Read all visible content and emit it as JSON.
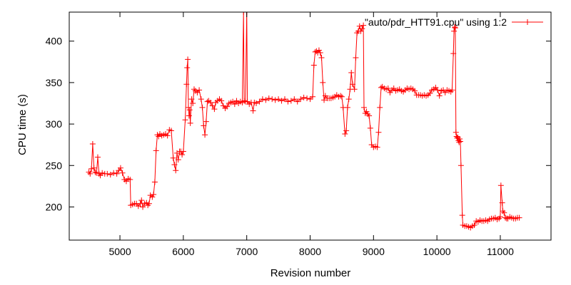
{
  "chart_data": {
    "type": "line",
    "title": "",
    "xlabel": "Revision number",
    "ylabel": "CPU time (s)",
    "xlim": [
      4200,
      11800
    ],
    "ylim": [
      160,
      435
    ],
    "xticks": [
      5000,
      6000,
      7000,
      8000,
      9000,
      10000,
      11000
    ],
    "yticks": [
      200,
      250,
      300,
      350,
      400
    ],
    "grid": false,
    "legend_position": "top-right",
    "marker": "plus",
    "series": [
      {
        "name": "\"auto/pdr_HTT91.cpu\" using 1:2",
        "color": "#ff0000",
        "points": [
          [
            4510,
            242
          ],
          [
            4530,
            240
          ],
          [
            4550,
            246
          ],
          [
            4570,
            276
          ],
          [
            4590,
            247
          ],
          [
            4610,
            242
          ],
          [
            4630,
            241
          ],
          [
            4650,
            260
          ],
          [
            4670,
            240
          ],
          [
            4690,
            238
          ],
          [
            4720,
            241
          ],
          [
            4760,
            240
          ],
          [
            4800,
            240
          ],
          [
            4850,
            239
          ],
          [
            4900,
            241
          ],
          [
            4950,
            240
          ],
          [
            4980,
            244
          ],
          [
            5010,
            247
          ],
          [
            5040,
            241
          ],
          [
            5070,
            233
          ],
          [
            5100,
            231
          ],
          [
            5130,
            234
          ],
          [
            5160,
            233
          ],
          [
            5170,
            202
          ],
          [
            5200,
            203
          ],
          [
            5230,
            204
          ],
          [
            5260,
            204
          ],
          [
            5290,
            201
          ],
          [
            5320,
            204
          ],
          [
            5340,
            208
          ],
          [
            5360,
            200
          ],
          [
            5390,
            204
          ],
          [
            5420,
            205
          ],
          [
            5440,
            202
          ],
          [
            5460,
            204
          ],
          [
            5480,
            214
          ],
          [
            5510,
            212
          ],
          [
            5530,
            215
          ],
          [
            5550,
            230
          ],
          [
            5570,
            268
          ],
          [
            5590,
            287
          ],
          [
            5610,
            285
          ],
          [
            5630,
            288
          ],
          [
            5660,
            286
          ],
          [
            5690,
            287
          ],
          [
            5720,
            288
          ],
          [
            5750,
            286
          ],
          [
            5780,
            293
          ],
          [
            5810,
            292
          ],
          [
            5840,
            259
          ],
          [
            5860,
            251
          ],
          [
            5880,
            244
          ],
          [
            5900,
            265
          ],
          [
            5920,
            257
          ],
          [
            5940,
            267
          ],
          [
            5960,
            267
          ],
          [
            5980,
            263
          ],
          [
            6000,
            267
          ],
          [
            6030,
            305
          ],
          [
            6050,
            348
          ],
          [
            6060,
            368
          ],
          [
            6070,
            378
          ],
          [
            6080,
            320
          ],
          [
            6090,
            310
          ],
          [
            6100,
            317
          ],
          [
            6110,
            301
          ],
          [
            6130,
            330
          ],
          [
            6150,
            325
          ],
          [
            6170,
            342
          ],
          [
            6190,
            340
          ],
          [
            6220,
            338
          ],
          [
            6250,
            341
          ],
          [
            6280,
            330
          ],
          [
            6300,
            320
          ],
          [
            6320,
            298
          ],
          [
            6340,
            287
          ],
          [
            6360,
            303
          ],
          [
            6380,
            327
          ],
          [
            6400,
            328
          ],
          [
            6430,
            326
          ],
          [
            6460,
            322
          ],
          [
            6490,
            318
          ],
          [
            6510,
            326
          ],
          [
            6540,
            328
          ],
          [
            6570,
            330
          ],
          [
            6600,
            328
          ],
          [
            6630,
            322
          ],
          [
            6660,
            319
          ],
          [
            6690,
            321
          ],
          [
            6720,
            325
          ],
          [
            6750,
            326
          ],
          [
            6780,
            327
          ],
          [
            6810,
            324
          ],
          [
            6840,
            328
          ],
          [
            6870,
            325
          ],
          [
            6900,
            327
          ],
          [
            6930,
            326
          ],
          [
            6950,
            435
          ],
          [
            6960,
            328
          ],
          [
            6980,
            327
          ],
          [
            7000,
            435
          ],
          [
            7010,
            327
          ],
          [
            7040,
            324
          ],
          [
            7070,
            326
          ],
          [
            7100,
            316
          ],
          [
            7120,
            326
          ],
          [
            7150,
            325
          ],
          [
            7200,
            327
          ],
          [
            7250,
            330
          ],
          [
            7300,
            329
          ],
          [
            7350,
            331
          ],
          [
            7400,
            330
          ],
          [
            7450,
            329
          ],
          [
            7500,
            330
          ],
          [
            7550,
            328
          ],
          [
            7600,
            330
          ],
          [
            7650,
            327
          ],
          [
            7700,
            328
          ],
          [
            7750,
            330
          ],
          [
            7800,
            327
          ],
          [
            7850,
            330
          ],
          [
            7900,
            332
          ],
          [
            7950,
            331
          ],
          [
            8000,
            330
          ],
          [
            8040,
            333
          ],
          [
            8060,
            371
          ],
          [
            8080,
            387
          ],
          [
            8100,
            388
          ],
          [
            8120,
            386
          ],
          [
            8140,
            389
          ],
          [
            8160,
            386
          ],
          [
            8180,
            380
          ],
          [
            8200,
            350
          ],
          [
            8220,
            329
          ],
          [
            8240,
            334
          ],
          [
            8270,
            331
          ],
          [
            8300,
            331
          ],
          [
            8330,
            331
          ],
          [
            8360,
            332
          ],
          [
            8390,
            333
          ],
          [
            8420,
            335
          ],
          [
            8450,
            333
          ],
          [
            8480,
            334
          ],
          [
            8500,
            333
          ],
          [
            8520,
            320
          ],
          [
            8550,
            288
          ],
          [
            8570,
            292
          ],
          [
            8590,
            320
          ],
          [
            8610,
            330
          ],
          [
            8630,
            342
          ],
          [
            8650,
            362
          ],
          [
            8670,
            348
          ],
          [
            8700,
            342
          ],
          [
            8720,
            380
          ],
          [
            8740,
            410
          ],
          [
            8760,
            412
          ],
          [
            8780,
            418
          ],
          [
            8800,
            412
          ],
          [
            8820,
            415
          ],
          [
            8840,
            419
          ],
          [
            8850,
            320
          ],
          [
            8870,
            313
          ],
          [
            8890,
            315
          ],
          [
            8910,
            312
          ],
          [
            8930,
            310
          ],
          [
            8950,
            295
          ],
          [
            8970,
            275
          ],
          [
            9000,
            272
          ],
          [
            9030,
            273
          ],
          [
            9060,
            272
          ],
          [
            9080,
            290
          ],
          [
            9100,
            320
          ],
          [
            9120,
            344
          ],
          [
            9140,
            345
          ],
          [
            9170,
            343
          ],
          [
            9200,
            342
          ],
          [
            9230,
            343
          ],
          [
            9260,
            338
          ],
          [
            9290,
            341
          ],
          [
            9320,
            343
          ],
          [
            9350,
            340
          ],
          [
            9380,
            341
          ],
          [
            9410,
            342
          ],
          [
            9440,
            340
          ],
          [
            9470,
            339
          ],
          [
            9500,
            341
          ],
          [
            9530,
            343
          ],
          [
            9560,
            342
          ],
          [
            9590,
            343
          ],
          [
            9620,
            342
          ],
          [
            9650,
            340
          ],
          [
            9680,
            335
          ],
          [
            9710,
            335
          ],
          [
            9740,
            335
          ],
          [
            9770,
            334
          ],
          [
            9800,
            335
          ],
          [
            9830,
            334
          ],
          [
            9860,
            335
          ],
          [
            9890,
            337
          ],
          [
            9920,
            341
          ],
          [
            9950,
            342
          ],
          [
            9980,
            344
          ],
          [
            10010,
            341
          ],
          [
            10040,
            334
          ],
          [
            10070,
            340
          ],
          [
            10100,
            341
          ],
          [
            10130,
            338
          ],
          [
            10160,
            341
          ],
          [
            10190,
            340
          ],
          [
            10220,
            339
          ],
          [
            10240,
            341
          ],
          [
            10260,
            385
          ],
          [
            10270,
            412
          ],
          [
            10280,
            417
          ],
          [
            10290,
            416
          ],
          [
            10300,
            290
          ],
          [
            10310,
            285
          ],
          [
            10320,
            283
          ],
          [
            10330,
            284
          ],
          [
            10340,
            280
          ],
          [
            10350,
            278
          ],
          [
            10360,
            282
          ],
          [
            10370,
            279
          ],
          [
            10380,
            250
          ],
          [
            10400,
            190
          ],
          [
            10410,
            178
          ],
          [
            10440,
            177
          ],
          [
            10470,
            177
          ],
          [
            10500,
            176
          ],
          [
            10530,
            175
          ],
          [
            10560,
            177
          ],
          [
            10590,
            178
          ],
          [
            10620,
            183
          ],
          [
            10650,
            182
          ],
          [
            10680,
            184
          ],
          [
            10710,
            183
          ],
          [
            10740,
            183
          ],
          [
            10770,
            184
          ],
          [
            10800,
            183
          ],
          [
            10830,
            185
          ],
          [
            10860,
            186
          ],
          [
            10890,
            186
          ],
          [
            10920,
            187
          ],
          [
            10950,
            185
          ],
          [
            10980,
            186
          ],
          [
            11000,
            188
          ],
          [
            11010,
            226
          ],
          [
            11030,
            205
          ],
          [
            11040,
            195
          ],
          [
            11060,
            193
          ],
          [
            11080,
            187
          ],
          [
            11100,
            186
          ],
          [
            11120,
            186
          ],
          [
            11150,
            188
          ],
          [
            11180,
            187
          ],
          [
            11210,
            186
          ],
          [
            11240,
            186
          ],
          [
            11270,
            187
          ],
          [
            11300,
            187
          ]
        ]
      }
    ]
  }
}
